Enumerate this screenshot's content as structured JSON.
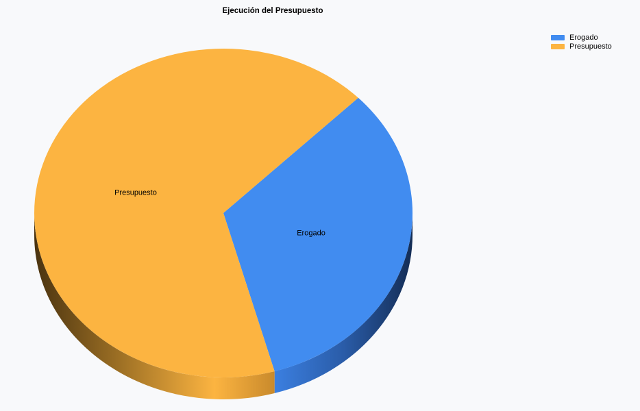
{
  "chart_data": {
    "type": "pie",
    "title": "Ejecución del Presupuesto",
    "categories": [
      "Erogado",
      "Presupuesto"
    ],
    "values": [
      33,
      67
    ],
    "colors": [
      "#418cf0",
      "#fcb441"
    ],
    "style": "3d",
    "legend_position": "top-right"
  }
}
